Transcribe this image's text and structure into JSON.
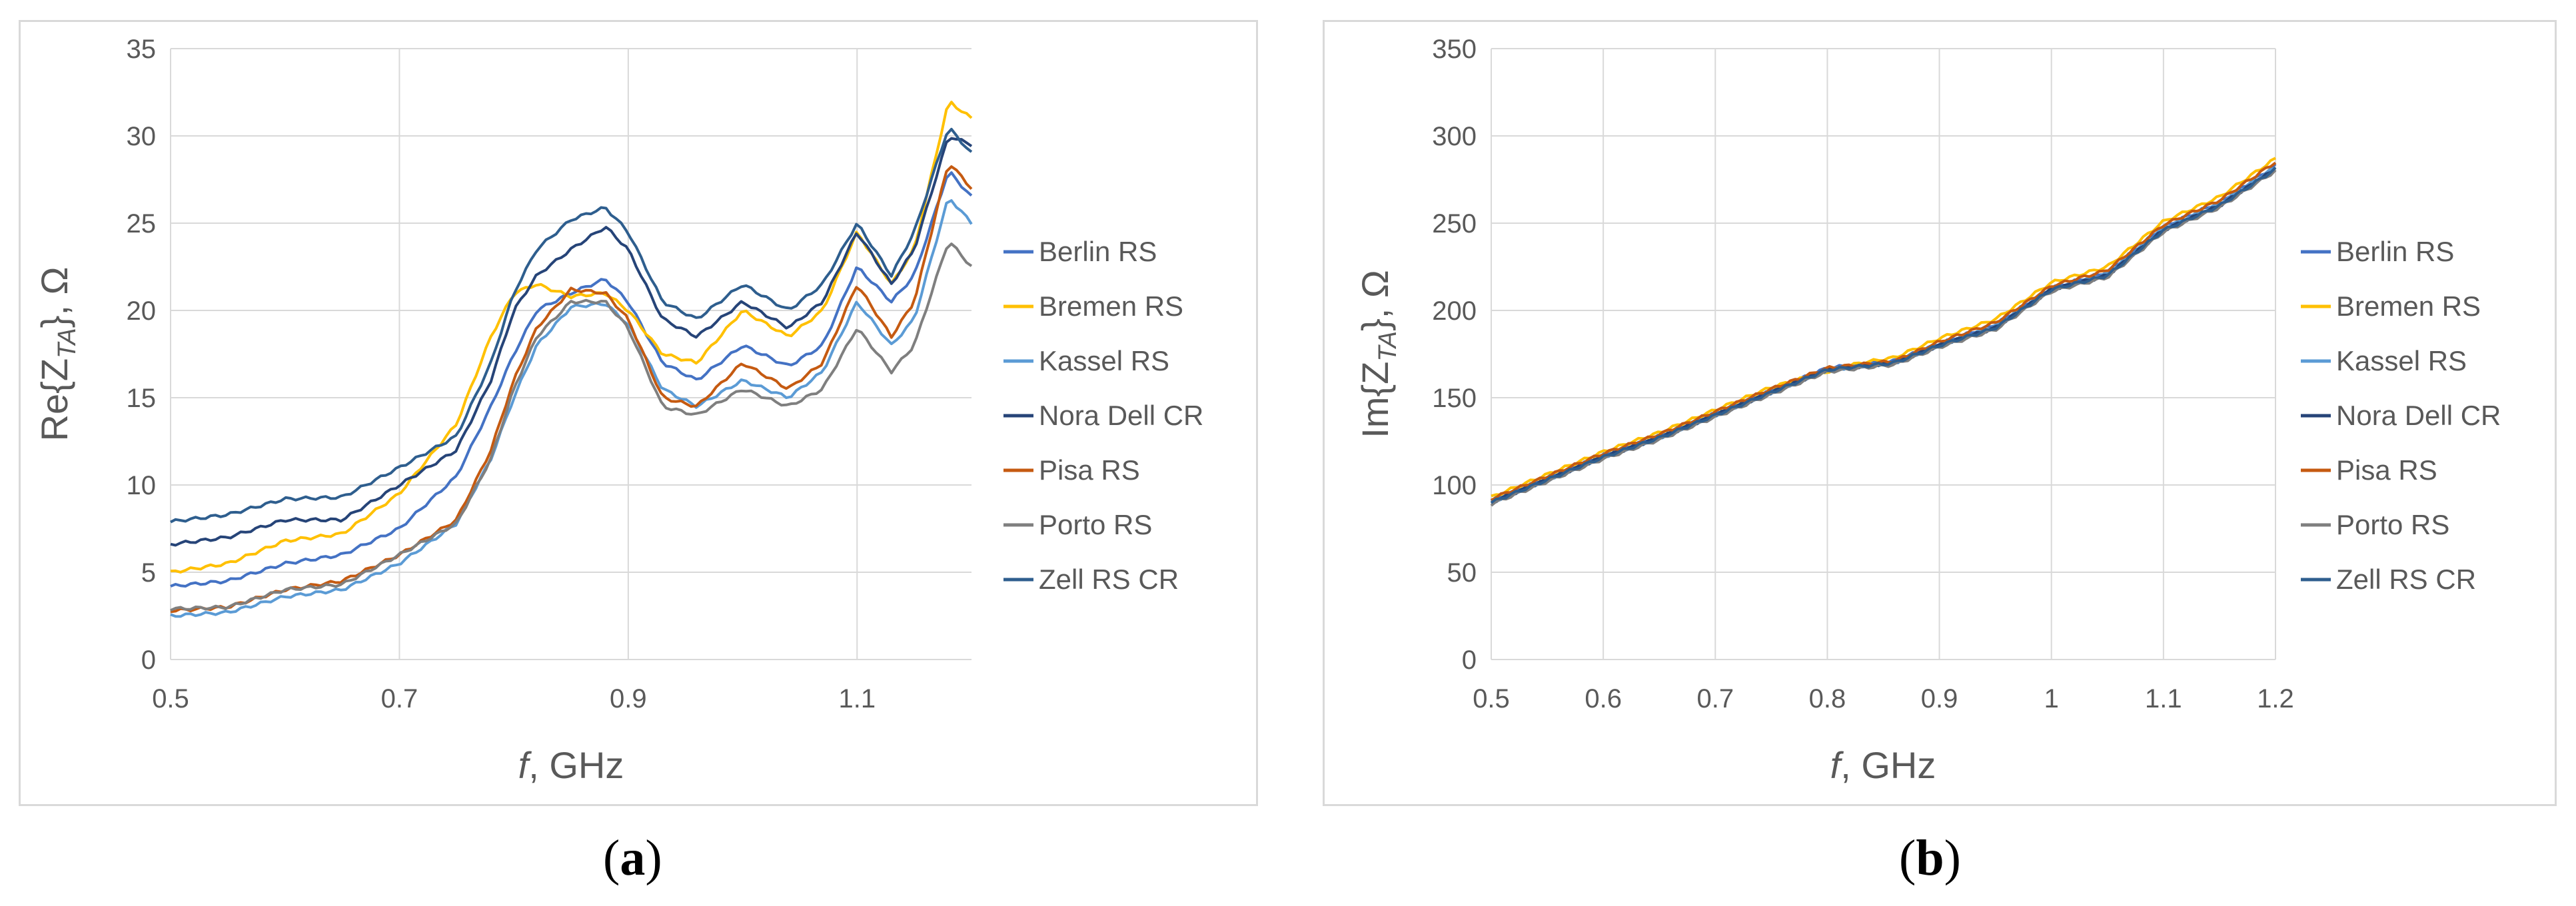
{
  "chart_data": [
    {
      "type": "line",
      "panel": "a",
      "caption_letter": "a",
      "xlabel_italic": "f",
      "xlabel_rest": ", GHz",
      "ylabel_pre": "Re{Z",
      "ylabel_sub": "TA",
      "ylabel_post": "}, Ω",
      "xlim": [
        0.5,
        1.2
      ],
      "ylim": [
        0,
        35
      ],
      "xticks": [
        0.5,
        0.7,
        0.9,
        1.1
      ],
      "xtick_labels": [
        "0.5",
        "0.7",
        "0.9",
        "1.1"
      ],
      "yticks": [
        0,
        5,
        10,
        15,
        20,
        25,
        30,
        35
      ],
      "grid": true,
      "legend_position": "right",
      "x": [
        0.5,
        0.55,
        0.6,
        0.65,
        0.7,
        0.75,
        0.78,
        0.8,
        0.82,
        0.85,
        0.88,
        0.9,
        0.93,
        0.96,
        1.0,
        1.04,
        1.07,
        1.1,
        1.13,
        1.15,
        1.18,
        1.2
      ],
      "series": [
        {
          "name": "Berlin RS",
          "color": "#4472c4",
          "values": [
            4.2,
            4.5,
            5.5,
            6.0,
            7.5,
            10.5,
            14.5,
            17.5,
            20.0,
            21.0,
            21.8,
            20.5,
            17.0,
            16.0,
            18.0,
            16.8,
            18.0,
            22.5,
            20.5,
            22.0,
            28.0,
            26.5
          ]
        },
        {
          "name": "Bremen RS",
          "color": "#ffc000",
          "values": [
            5.0,
            5.5,
            6.8,
            7.2,
            9.5,
            13.5,
            18.5,
            21.0,
            21.5,
            20.8,
            21.0,
            20.0,
            17.5,
            17.0,
            20.0,
            18.5,
            20.0,
            24.5,
            21.5,
            23.5,
            32.0,
            31.0
          ]
        },
        {
          "name": "Kassel RS",
          "color": "#5b9bd5",
          "values": [
            2.5,
            2.7,
            3.6,
            4.0,
            5.5,
            7.8,
            11.5,
            15.0,
            18.0,
            20.2,
            20.4,
            19.2,
            15.5,
            14.5,
            16.0,
            15.0,
            16.5,
            20.5,
            18.0,
            19.5,
            26.5,
            25.0
          ]
        },
        {
          "name": "Nora Dell CR",
          "color": "#264478",
          "values": [
            6.6,
            7.0,
            8.0,
            8.0,
            10.0,
            12.0,
            16.0,
            20.0,
            22.0,
            23.5,
            24.8,
            23.5,
            19.5,
            18.5,
            20.5,
            19.0,
            20.5,
            24.5,
            21.5,
            23.5,
            30.0,
            29.5
          ]
        },
        {
          "name": "Pisa RS",
          "color": "#c55a11",
          "values": [
            2.8,
            3.0,
            4.0,
            4.5,
            6.0,
            8.0,
            12.0,
            16.0,
            19.0,
            21.2,
            21.0,
            19.5,
            15.0,
            14.5,
            17.0,
            15.5,
            17.0,
            21.5,
            18.5,
            20.5,
            28.5,
            27.0
          ]
        },
        {
          "name": "Porto RS",
          "color": "#7f7f7f",
          "values": [
            2.9,
            3.0,
            4.0,
            4.3,
            6.0,
            7.8,
            11.5,
            15.5,
            18.5,
            20.5,
            20.5,
            19.0,
            14.5,
            14.0,
            15.5,
            14.5,
            15.5,
            19.0,
            16.5,
            18.0,
            24.0,
            22.5
          ]
        },
        {
          "name": "Zell RS CR",
          "color": "#2e5e8e",
          "values": [
            7.9,
            8.3,
            9.2,
            9.3,
            11.0,
            12.8,
            17.0,
            21.0,
            23.5,
            25.2,
            25.9,
            24.5,
            20.5,
            19.5,
            21.5,
            20.0,
            21.5,
            25.0,
            22.0,
            24.5,
            30.5,
            29.0
          ]
        }
      ]
    },
    {
      "type": "line",
      "panel": "b",
      "caption_letter": "b",
      "xlabel_italic": "f",
      "xlabel_rest": ", GHz",
      "ylabel_pre": "Im{Z",
      "ylabel_sub": "TA",
      "ylabel_post": "}, Ω",
      "xlim": [
        0.5,
        1.2
      ],
      "ylim": [
        0,
        350
      ],
      "xticks": [
        0.5,
        0.6,
        0.7,
        0.8,
        0.9,
        1.0,
        1.1,
        1.2
      ],
      "xtick_labels": [
        "0.5",
        "0.6",
        "0.7",
        "0.8",
        "0.9",
        "1",
        "1.1",
        "1.2"
      ],
      "yticks": [
        0,
        50,
        100,
        150,
        200,
        250,
        300,
        350
      ],
      "grid": true,
      "legend_position": "right",
      "x": [
        0.5,
        0.55,
        0.6,
        0.65,
        0.7,
        0.75,
        0.8,
        0.83,
        0.86,
        0.9,
        0.95,
        1.0,
        1.05,
        1.1,
        1.15,
        1.2
      ],
      "series": [
        {
          "name": "Berlin RS",
          "color": "#4472c4",
          "values": [
            91,
            104,
            117,
            128,
            141,
            154,
            167,
            169,
            171,
            181,
            192,
            213,
            222,
            248,
            262,
            283
          ]
        },
        {
          "name": "Bremen RS",
          "color": "#ffc000",
          "values": [
            93,
            106,
            119,
            130,
            143,
            156,
            165,
            170,
            173,
            184,
            195,
            216,
            225,
            251,
            265,
            287
          ]
        },
        {
          "name": "Kassel RS",
          "color": "#5b9bd5",
          "values": [
            90,
            103,
            116,
            127,
            140,
            153,
            166,
            168,
            170,
            180,
            191,
            212,
            221,
            247,
            261,
            282
          ]
        },
        {
          "name": "Nora Dell CR",
          "color": "#264478",
          "values": [
            90,
            103,
            116,
            127,
            140,
            153,
            166,
            168,
            170,
            180,
            190,
            212,
            220,
            246,
            260,
            281
          ]
        },
        {
          "name": "Pisa RS",
          "color": "#c55a11",
          "values": [
            92,
            105,
            118,
            129,
            142,
            155,
            167,
            169,
            171,
            182,
            193,
            214,
            223,
            249,
            263,
            285
          ]
        },
        {
          "name": "Porto RS",
          "color": "#7f7f7f",
          "values": [
            89,
            102,
            115,
            126,
            139,
            152,
            165,
            167,
            169,
            179,
            189,
            211,
            219,
            245,
            259,
            280
          ]
        },
        {
          "name": "Zell RS CR",
          "color": "#2e5e8e",
          "values": [
            90,
            103,
            116,
            127,
            140,
            153,
            166,
            168,
            170,
            180,
            190,
            212,
            220,
            246,
            260,
            281
          ]
        }
      ]
    }
  ]
}
